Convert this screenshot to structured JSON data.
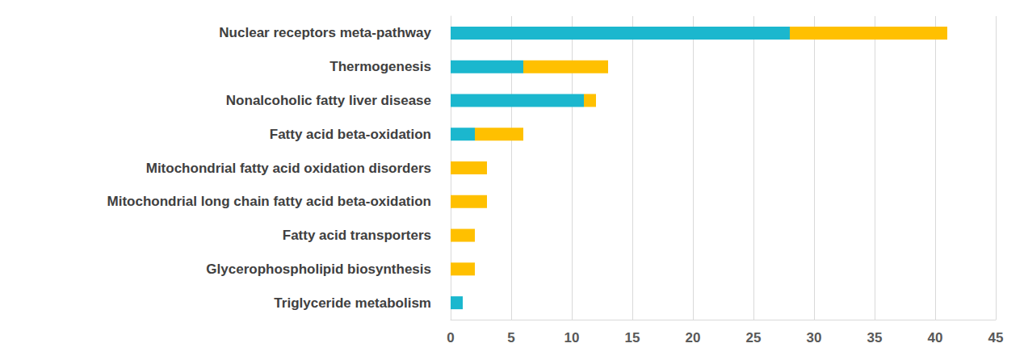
{
  "chart_data": {
    "type": "bar",
    "orientation": "horizontal",
    "stacked": true,
    "grid": true,
    "categories": [
      "Nuclear receptors meta-pathway",
      "Thermogenesis",
      "Nonalcoholic fatty liver disease",
      "Fatty acid beta-oxidation",
      "Mitochondrial fatty acid oxidation disorders",
      "Mitochondrial long chain fatty acid beta-oxidation",
      "Fatty acid transporters",
      "Glycerophospholipid biosynthesis",
      "Triglyceride metabolism"
    ],
    "series": [
      {
        "color": "#1bb7ce",
        "values": [
          28,
          6,
          11,
          2,
          0,
          0,
          0,
          0,
          1
        ]
      },
      {
        "color": "#ffc000",
        "values": [
          13,
          7,
          1,
          4,
          3,
          3,
          2,
          2,
          0
        ]
      }
    ],
    "xlim": [
      0,
      45
    ],
    "xticks": [
      0,
      5,
      10,
      15,
      20,
      25,
      30,
      35,
      40,
      45
    ]
  }
}
